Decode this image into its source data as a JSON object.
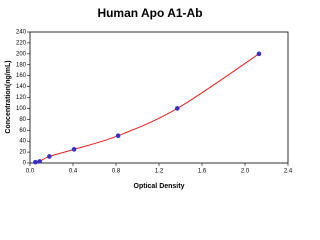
{
  "chart_data": {
    "type": "scatter",
    "title": "Human Apo A1-Ab",
    "x_label": "Optical Density",
    "y_label": "Concentration(ng/mL)",
    "x": [
      0.05,
      0.09,
      0.18,
      0.41,
      0.82,
      1.37,
      2.13
    ],
    "values": [
      1.5,
      3,
      12,
      25,
      50,
      100,
      200
    ],
    "marker_color": "#3a2fc0",
    "line_color": "#e02020",
    "xlim": [
      0,
      2.4
    ],
    "xticks": [
      {
        "value": 0,
        "label": "0.0"
      },
      0.4,
      0.8,
      1.2,
      1.6,
      {
        "value": 2,
        "label": "2.0"
      },
      2.4
    ],
    "ylim": [
      0,
      240
    ],
    "yticks": [
      0,
      20,
      40,
      60,
      80,
      100,
      120,
      140,
      160,
      180,
      200,
      220,
      240
    ],
    "grid": false
  }
}
